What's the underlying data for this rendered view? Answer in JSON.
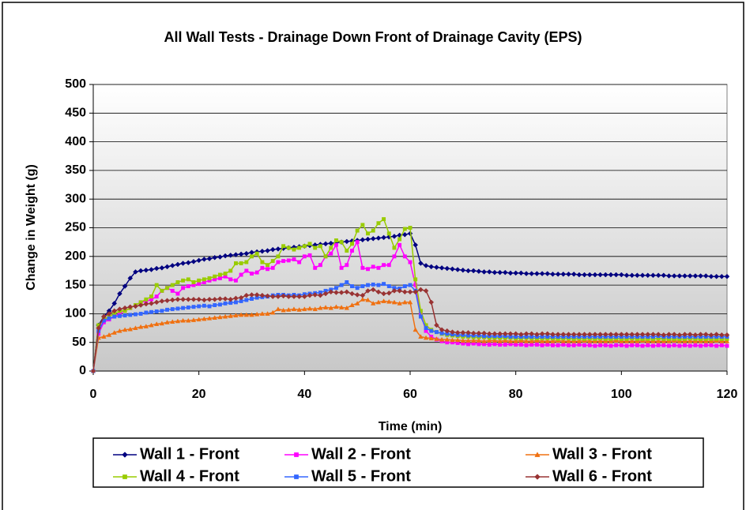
{
  "chart_data": {
    "type": "line",
    "title": "All Wall Tests - Drainage Down Front of Drainage Cavity (EPS)",
    "xlabel": "Time (min)",
    "ylabel": "Change in Weight (g)",
    "xlim": [
      0,
      120
    ],
    "xticks": [
      0,
      20,
      40,
      60,
      80,
      100,
      120
    ],
    "ylim": [
      0,
      500
    ],
    "yticks": [
      0,
      50,
      100,
      150,
      200,
      250,
      300,
      350,
      400,
      450,
      500
    ],
    "grid": true,
    "legend": "bottom",
    "x": [
      0,
      1,
      2,
      3,
      4,
      5,
      6,
      7,
      8,
      9,
      10,
      11,
      12,
      13,
      14,
      15,
      16,
      17,
      18,
      19,
      20,
      21,
      22,
      23,
      24,
      25,
      26,
      27,
      28,
      29,
      30,
      31,
      32,
      33,
      34,
      35,
      36,
      37,
      38,
      39,
      40,
      41,
      42,
      43,
      44,
      45,
      46,
      47,
      48,
      49,
      50,
      51,
      52,
      53,
      54,
      55,
      56,
      57,
      58,
      59,
      60,
      61,
      62,
      63,
      64,
      65,
      66,
      67,
      68,
      69,
      70,
      71,
      72,
      73,
      74,
      75,
      76,
      77,
      78,
      79,
      80,
      81,
      82,
      83,
      84,
      85,
      86,
      87,
      88,
      89,
      90,
      91,
      92,
      93,
      94,
      95,
      96,
      97,
      98,
      99,
      100,
      101,
      102,
      103,
      104,
      105,
      106,
      107,
      108,
      109,
      110,
      111,
      112,
      113,
      114,
      115,
      116,
      117,
      118,
      119,
      120
    ],
    "series": [
      {
        "name": "Wall 1 - Front",
        "color": "#000080",
        "marker": "diamond",
        "values": [
          0,
          80,
          95,
          105,
          118,
          135,
          148,
          162,
          173,
          175,
          176,
          177,
          179,
          180,
          182,
          184,
          186,
          188,
          189,
          191,
          193,
          195,
          196,
          198,
          199,
          201,
          202,
          203,
          204,
          205,
          207,
          208,
          209,
          210,
          212,
          213,
          214,
          215,
          216,
          217,
          218,
          219,
          220,
          221,
          222,
          223,
          224,
          225,
          226,
          227,
          228,
          229,
          230,
          231,
          232,
          233,
          234,
          235,
          237,
          238,
          240,
          220,
          188,
          184,
          182,
          181,
          180,
          179,
          178,
          177,
          176,
          175,
          175,
          174,
          173,
          173,
          172,
          172,
          172,
          171,
          171,
          171,
          170,
          170,
          170,
          170,
          170,
          169,
          169,
          169,
          169,
          169,
          168,
          168,
          168,
          168,
          168,
          168,
          168,
          168,
          168,
          167,
          167,
          167,
          167,
          167,
          167,
          167,
          167,
          166,
          166,
          166,
          166,
          166,
          166,
          166,
          166,
          165,
          165,
          165,
          165
        ]
      },
      {
        "name": "Wall 2 - Front",
        "color": "#ff00ff",
        "marker": "square",
        "values": [
          0,
          65,
          85,
          90,
          95,
          100,
          105,
          110,
          115,
          120,
          122,
          125,
          130,
          140,
          145,
          140,
          135,
          145,
          148,
          150,
          152,
          155,
          158,
          160,
          162,
          165,
          160,
          158,
          168,
          175,
          170,
          172,
          180,
          178,
          180,
          190,
          192,
          193,
          195,
          190,
          200,
          202,
          180,
          185,
          200,
          205,
          220,
          180,
          185,
          210,
          225,
          180,
          178,
          182,
          180,
          185,
          185,
          200,
          220,
          200,
          190,
          150,
          100,
          70,
          60,
          55,
          52,
          50,
          50,
          49,
          48,
          47,
          48,
          47,
          47,
          46,
          47,
          46,
          46,
          47,
          46,
          46,
          45,
          46,
          46,
          45,
          46,
          45,
          45,
          46,
          45,
          45,
          46,
          45,
          45,
          44,
          45,
          45,
          44,
          45,
          45,
          44,
          45,
          45,
          44,
          45,
          44,
          45,
          45,
          44,
          45,
          44,
          45,
          44,
          45,
          44,
          45,
          45,
          44,
          45,
          44
        ]
      },
      {
        "name": "Wall 3 - Front",
        "color": "#f07010",
        "marker": "triangle",
        "values": [
          0,
          58,
          60,
          63,
          67,
          70,
          72,
          73,
          75,
          77,
          78,
          80,
          82,
          83,
          85,
          86,
          87,
          88,
          88,
          89,
          90,
          91,
          92,
          93,
          94,
          95,
          96,
          97,
          98,
          98,
          98,
          99,
          100,
          100,
          102,
          108,
          106,
          107,
          108,
          107,
          108,
          109,
          108,
          110,
          111,
          110,
          112,
          111,
          110,
          115,
          118,
          125,
          124,
          118,
          120,
          122,
          121,
          120,
          118,
          120,
          120,
          72,
          60,
          58,
          57,
          56,
          55,
          55,
          54,
          54,
          53,
          53,
          53,
          53,
          52,
          53,
          53,
          52,
          53,
          52,
          52,
          53,
          52,
          52,
          53,
          52,
          52,
          52,
          53,
          52,
          52,
          52,
          52,
          53,
          52,
          52,
          52,
          52,
          52,
          53,
          52,
          52,
          52,
          52,
          53,
          52,
          52,
          52,
          52,
          52,
          53,
          52,
          52,
          52,
          52,
          52,
          52,
          52,
          53,
          52,
          52
        ]
      },
      {
        "name": "Wall 4 - Front",
        "color": "#99cc00",
        "marker": "square",
        "values": [
          0,
          80,
          90,
          95,
          100,
          105,
          105,
          110,
          115,
          120,
          125,
          130,
          150,
          140,
          145,
          150,
          155,
          158,
          160,
          155,
          158,
          160,
          162,
          165,
          168,
          170,
          175,
          188,
          188,
          190,
          200,
          205,
          190,
          185,
          192,
          200,
          218,
          215,
          212,
          215,
          218,
          222,
          215,
          218,
          200,
          215,
          228,
          225,
          210,
          222,
          245,
          255,
          240,
          245,
          258,
          265,
          240,
          215,
          230,
          248,
          250,
          160,
          105,
          80,
          72,
          68,
          65,
          63,
          62,
          61,
          60,
          60,
          59,
          59,
          59,
          58,
          58,
          58,
          58,
          58,
          57,
          57,
          58,
          57,
          57,
          57,
          57,
          57,
          56,
          57,
          57,
          56,
          57,
          56,
          57,
          56,
          57,
          56,
          56,
          57,
          56,
          56,
          57,
          56,
          56,
          56,
          56,
          57,
          56,
          56,
          56,
          56,
          56,
          57,
          56,
          56,
          56,
          56,
          56,
          56,
          56
        ]
      },
      {
        "name": "Wall 5 - Front",
        "color": "#3366ff",
        "marker": "square",
        "values": [
          0,
          70,
          88,
          92,
          95,
          96,
          97,
          98,
          99,
          100,
          102,
          103,
          104,
          105,
          107,
          108,
          109,
          110,
          111,
          112,
          113,
          114,
          113,
          115,
          116,
          118,
          119,
          120,
          122,
          124,
          126,
          128,
          129,
          130,
          132,
          133,
          133,
          132,
          133,
          132,
          134,
          135,
          136,
          137,
          140,
          142,
          145,
          150,
          155,
          148,
          145,
          148,
          150,
          151,
          150,
          152,
          148,
          145,
          144,
          148,
          150,
          140,
          95,
          75,
          70,
          68,
          66,
          65,
          64,
          63,
          63,
          62,
          62,
          62,
          61,
          61,
          61,
          61,
          61,
          60,
          60,
          60,
          60,
          60,
          60,
          60,
          60,
          60,
          60,
          60,
          60,
          60,
          60,
          60,
          60,
          60,
          60,
          60,
          60,
          60,
          60,
          60,
          60,
          60,
          60,
          60,
          60,
          61,
          60,
          60,
          60,
          60,
          60,
          60,
          60,
          60,
          60,
          60,
          60,
          60,
          60
        ]
      },
      {
        "name": "Wall 6 - Front",
        "color": "#993333",
        "marker": "diamond",
        "values": [
          0,
          75,
          95,
          100,
          105,
          108,
          110,
          112,
          113,
          115,
          117,
          118,
          120,
          122,
          123,
          124,
          125,
          125,
          125,
          125,
          125,
          124,
          125,
          125,
          126,
          126,
          125,
          127,
          128,
          132,
          133,
          133,
          132,
          131,
          130,
          130,
          131,
          130,
          130,
          130,
          130,
          132,
          133,
          132,
          135,
          138,
          137,
          137,
          138,
          135,
          133,
          132,
          140,
          142,
          138,
          135,
          136,
          140,
          140,
          138,
          138,
          138,
          142,
          140,
          120,
          80,
          72,
          70,
          68,
          67,
          67,
          67,
          66,
          66,
          66,
          65,
          65,
          65,
          65,
          65,
          65,
          64,
          65,
          65,
          64,
          65,
          65,
          64,
          64,
          64,
          64,
          64,
          64,
          64,
          64,
          64,
          64,
          64,
          64,
          64,
          64,
          64,
          64,
          64,
          64,
          64,
          64,
          64,
          63,
          64,
          64,
          63,
          64,
          64,
          63,
          64,
          64,
          63,
          64,
          63,
          63
        ]
      }
    ]
  }
}
